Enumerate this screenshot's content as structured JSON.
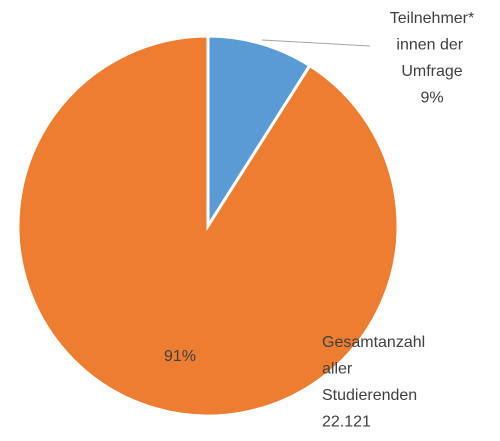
{
  "chart_data": {
    "type": "pie",
    "categories": [
      "Teilnehmer*innen der Umfrage",
      "Gesamtanzahl aller Studierenden 22.121"
    ],
    "values": [
      9,
      91
    ],
    "value_labels": [
      "9%",
      "91%"
    ],
    "colors": [
      "#5b9bd5",
      "#ed7d31"
    ]
  }
}
